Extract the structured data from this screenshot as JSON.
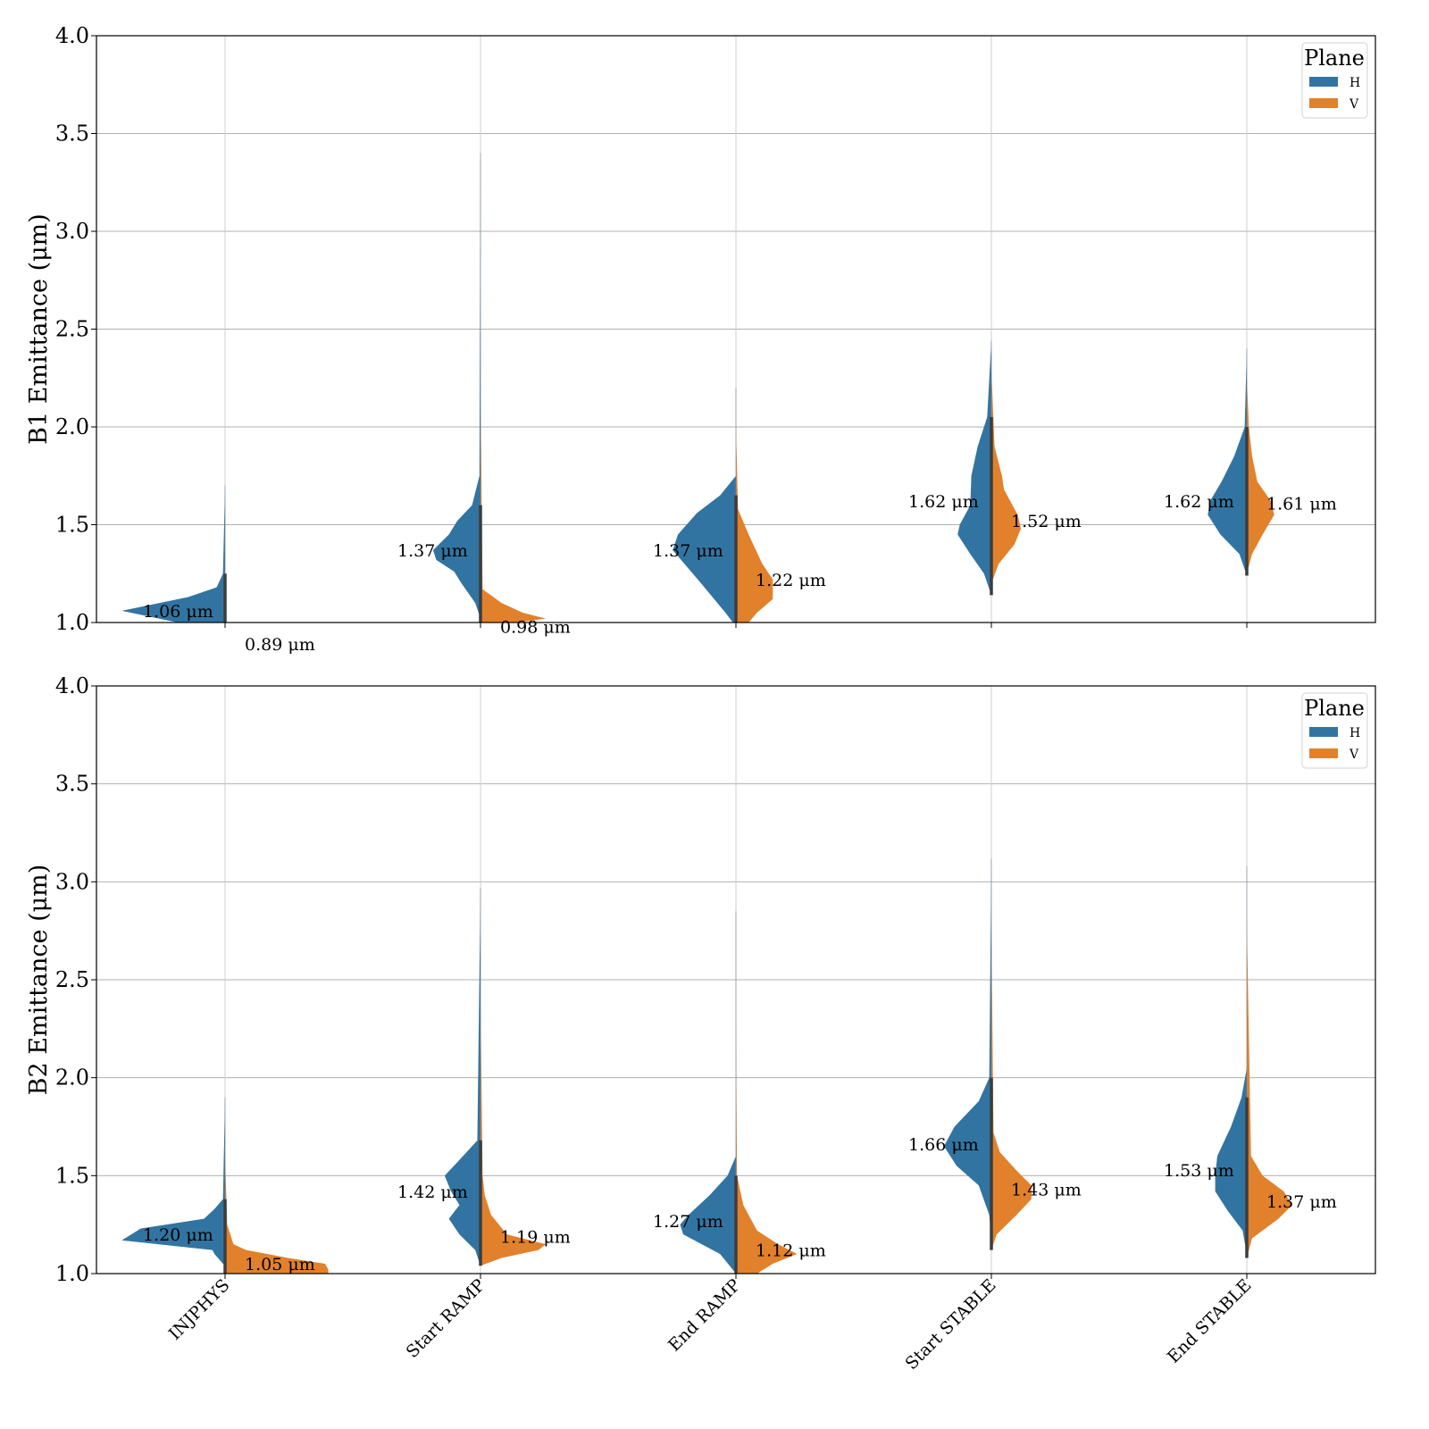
{
  "chart_data": [
    {
      "type": "violin",
      "ylabel": "B1 Emittance (μm)",
      "ylim": [
        1.0,
        4.0
      ],
      "yticks": [
        "1.0",
        "1.5",
        "2.0",
        "2.5",
        "3.0",
        "3.5",
        "4.0"
      ],
      "grid": true,
      "categories": [
        "INJPHYS",
        "Start RAMP",
        "End RAMP",
        "Start STABLE",
        "End STABLE"
      ],
      "legend": {
        "title": "Plane",
        "position": "top-right",
        "entries": [
          {
            "name": "H",
            "color": "#3274a1"
          },
          {
            "name": "V",
            "color": "#e1812c"
          }
        ]
      },
      "series": [
        {
          "name": "H",
          "medians": [
            1.06,
            1.37,
            1.37,
            1.62,
            1.62
          ],
          "labels": [
            "1.06 μm",
            "1.37 μm",
            "1.37 μm",
            "1.62 μm",
            "1.62 μm"
          ],
          "ranges": [
            [
              0.95,
              1.7
            ],
            [
              1.02,
              3.4
            ],
            [
              0.98,
              2.2
            ],
            [
              1.14,
              2.44
            ],
            [
              1.24,
              2.4
            ]
          ],
          "profiles": [
            [
              [
                0.95,
                0.2
              ],
              [
                1.0,
                0.45
              ],
              [
                1.06,
                0.98
              ],
              [
                1.13,
                0.35
              ],
              [
                1.18,
                0.08
              ],
              [
                1.25,
                0.02
              ],
              [
                1.7,
                0
              ]
            ],
            [
              [
                1.02,
                0
              ],
              [
                1.1,
                0.05
              ],
              [
                1.2,
                0.18
              ],
              [
                1.26,
                0.25
              ],
              [
                1.32,
                0.42
              ],
              [
                1.37,
                0.45
              ],
              [
                1.45,
                0.3
              ],
              [
                1.52,
                0.22
              ],
              [
                1.6,
                0.08
              ],
              [
                1.75,
                0.01
              ],
              [
                3.4,
                0
              ]
            ],
            [
              [
                0.98,
                0
              ],
              [
                1.05,
                0.1
              ],
              [
                1.2,
                0.33
              ],
              [
                1.37,
                0.6
              ],
              [
                1.45,
                0.55
              ],
              [
                1.56,
                0.37
              ],
              [
                1.65,
                0.15
              ],
              [
                1.75,
                0
              ],
              [
                2.2,
                0
              ]
            ],
            [
              [
                1.14,
                0
              ],
              [
                1.25,
                0.07
              ],
              [
                1.35,
                0.2
              ],
              [
                1.45,
                0.32
              ],
              [
                1.5,
                0.3
              ],
              [
                1.6,
                0.2
              ],
              [
                1.75,
                0.19
              ],
              [
                1.9,
                0.13
              ],
              [
                2.05,
                0.04
              ],
              [
                2.44,
                0
              ]
            ],
            [
              [
                1.24,
                0
              ],
              [
                1.35,
                0.07
              ],
              [
                1.45,
                0.25
              ],
              [
                1.55,
                0.37
              ],
              [
                1.62,
                0.35
              ],
              [
                1.72,
                0.24
              ],
              [
                1.85,
                0.12
              ],
              [
                2.0,
                0.02
              ],
              [
                2.4,
                0
              ]
            ]
          ]
        },
        {
          "name": "V",
          "medians": [
            0.89,
            0.98,
            1.22,
            1.52,
            1.61
          ],
          "labels": [
            "0.89 μm",
            "0.98 μm",
            "1.22 μm",
            "1.52 μm",
            "1.61 μm"
          ],
          "ranges": [
            [
              0.8,
              1.0
            ],
            [
              0.9,
              2.17
            ],
            [
              0.98,
              2.0
            ],
            [
              1.2,
              2.3
            ],
            [
              1.25,
              2.25
            ]
          ],
          "profiles": [
            [
              [
                0.95,
                0
              ],
              [
                1.0,
                0.02
              ]
            ],
            [
              [
                0.95,
                0
              ],
              [
                1.0,
                0.35
              ],
              [
                1.02,
                0.62
              ],
              [
                1.05,
                0.4
              ],
              [
                1.1,
                0.2
              ],
              [
                1.17,
                0.02
              ],
              [
                2.17,
                0
              ]
            ],
            [
              [
                1.0,
                0.12
              ],
              [
                1.05,
                0.2
              ],
              [
                1.12,
                0.35
              ],
              [
                1.22,
                0.35
              ],
              [
                1.3,
                0.25
              ],
              [
                1.45,
                0.12
              ],
              [
                1.58,
                0.02
              ],
              [
                2.0,
                0
              ]
            ],
            [
              [
                1.2,
                0
              ],
              [
                1.3,
                0.07
              ],
              [
                1.4,
                0.22
              ],
              [
                1.48,
                0.28
              ],
              [
                1.55,
                0.25
              ],
              [
                1.68,
                0.12
              ],
              [
                1.75,
                0.1
              ],
              [
                1.9,
                0.03
              ],
              [
                2.3,
                0
              ]
            ],
            [
              [
                1.25,
                0
              ],
              [
                1.35,
                0.05
              ],
              [
                1.45,
                0.15
              ],
              [
                1.55,
                0.26
              ],
              [
                1.62,
                0.23
              ],
              [
                1.72,
                0.1
              ],
              [
                1.85,
                0.05
              ],
              [
                2.0,
                0.02
              ],
              [
                2.25,
                0
              ]
            ]
          ]
        }
      ]
    },
    {
      "type": "violin",
      "ylabel": "B2 Emittance (μm)",
      "ylim": [
        1.0,
        4.0
      ],
      "yticks": [
        "1.0",
        "1.5",
        "2.0",
        "2.5",
        "3.0",
        "3.5",
        "4.0"
      ],
      "grid": true,
      "categories": [
        "INJPHYS",
        "Start RAMP",
        "End RAMP",
        "Start STABLE",
        "End STABLE"
      ],
      "legend": {
        "title": "Plane",
        "position": "top-right",
        "entries": [
          {
            "name": "H",
            "color": "#3274a1"
          },
          {
            "name": "V",
            "color": "#e1812c"
          }
        ]
      },
      "series": [
        {
          "name": "H",
          "medians": [
            1.2,
            1.42,
            1.27,
            1.66,
            1.53
          ],
          "labels": [
            "1.20 μm",
            "1.42 μm",
            "1.27 μm",
            "1.66 μm",
            "1.53 μm"
          ],
          "ranges": [
            [
              1.0,
              1.9
            ],
            [
              1.04,
              2.97
            ],
            [
              1.0,
              2.85
            ],
            [
              1.18,
              3.12
            ],
            [
              1.1,
              3.08
            ]
          ],
          "profiles": [
            [
              [
                1.05,
                0.02
              ],
              [
                1.1,
                0.1
              ],
              [
                1.12,
                0.12
              ],
              [
                1.17,
                0.98
              ],
              [
                1.23,
                0.8
              ],
              [
                1.28,
                0.2
              ],
              [
                1.33,
                0.1
              ],
              [
                1.38,
                0.02
              ],
              [
                1.9,
                0
              ]
            ],
            [
              [
                1.04,
                0
              ],
              [
                1.12,
                0.05
              ],
              [
                1.2,
                0.2
              ],
              [
                1.28,
                0.3
              ],
              [
                1.35,
                0.2
              ],
              [
                1.42,
                0.28
              ],
              [
                1.5,
                0.34
              ],
              [
                1.58,
                0.2
              ],
              [
                1.68,
                0.03
              ],
              [
                2.97,
                0
              ]
            ],
            [
              [
                1.0,
                0
              ],
              [
                1.1,
                0.15
              ],
              [
                1.2,
                0.5
              ],
              [
                1.25,
                0.53
              ],
              [
                1.3,
                0.45
              ],
              [
                1.4,
                0.25
              ],
              [
                1.5,
                0.08
              ],
              [
                1.6,
                0
              ],
              [
                2.85,
                0
              ]
            ],
            [
              [
                1.18,
                0
              ],
              [
                1.3,
                0.02
              ],
              [
                1.45,
                0.12
              ],
              [
                1.55,
                0.33
              ],
              [
                1.65,
                0.45
              ],
              [
                1.75,
                0.35
              ],
              [
                1.88,
                0.12
              ],
              [
                2.0,
                0.02
              ],
              [
                3.12,
                0
              ]
            ],
            [
              [
                1.1,
                0
              ],
              [
                1.22,
                0.04
              ],
              [
                1.32,
                0.18
              ],
              [
                1.42,
                0.3
              ],
              [
                1.5,
                0.3
              ],
              [
                1.6,
                0.28
              ],
              [
                1.75,
                0.15
              ],
              [
                1.9,
                0.05
              ],
              [
                2.05,
                0
              ],
              [
                3.08,
                0
              ]
            ]
          ]
        },
        {
          "name": "V",
          "medians": [
            1.05,
            1.19,
            1.12,
            1.43,
            1.37
          ],
          "labels": [
            "1.05 μm",
            "1.19 μm",
            "1.12 μm",
            "1.43 μm",
            "1.37 μm"
          ],
          "ranges": [
            [
              1.0,
              1.6
            ],
            [
              1.04,
              2.4
            ],
            [
              1.0,
              2.3
            ],
            [
              1.12,
              2.8
            ],
            [
              1.08,
              2.8
            ]
          ],
          "profiles": [
            [
              [
                1.0,
                0.98
              ],
              [
                1.02,
                0.98
              ],
              [
                1.05,
                0.95
              ],
              [
                1.08,
                0.6
              ],
              [
                1.12,
                0.2
              ],
              [
                1.15,
                0.08
              ],
              [
                1.25,
                0.02
              ],
              [
                1.6,
                0
              ]
            ],
            [
              [
                1.04,
                0
              ],
              [
                1.08,
                0.2
              ],
              [
                1.12,
                0.55
              ],
              [
                1.15,
                0.62
              ],
              [
                1.2,
                0.25
              ],
              [
                1.3,
                0.1
              ],
              [
                1.4,
                0.04
              ],
              [
                1.5,
                0.02
              ],
              [
                2.4,
                0
              ]
            ],
            [
              [
                1.0,
                0.2
              ],
              [
                1.05,
                0.35
              ],
              [
                1.1,
                0.58
              ],
              [
                1.15,
                0.4
              ],
              [
                1.22,
                0.2
              ],
              [
                1.35,
                0.07
              ],
              [
                1.5,
                0.01
              ],
              [
                2.3,
                0
              ]
            ],
            [
              [
                1.12,
                0
              ],
              [
                1.2,
                0.05
              ],
              [
                1.3,
                0.24
              ],
              [
                1.38,
                0.38
              ],
              [
                1.45,
                0.38
              ],
              [
                1.52,
                0.25
              ],
              [
                1.62,
                0.08
              ],
              [
                1.72,
                0.02
              ],
              [
                2.8,
                0
              ]
            ],
            [
              [
                1.08,
                0
              ],
              [
                1.18,
                0.05
              ],
              [
                1.28,
                0.3
              ],
              [
                1.35,
                0.43
              ],
              [
                1.42,
                0.35
              ],
              [
                1.5,
                0.15
              ],
              [
                1.6,
                0.04
              ],
              [
                2.8,
                0
              ]
            ]
          ]
        }
      ]
    }
  ]
}
